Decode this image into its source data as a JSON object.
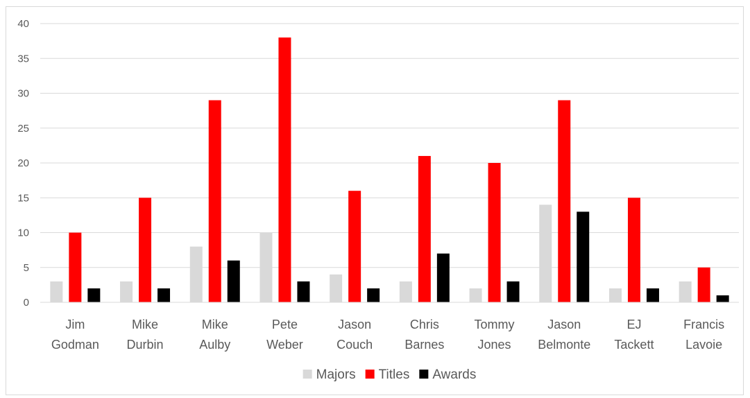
{
  "chart_data": {
    "type": "bar",
    "categories": [
      [
        "Jim",
        "Godman"
      ],
      [
        "Mike",
        "Durbin"
      ],
      [
        "Mike",
        "Aulby"
      ],
      [
        "Pete",
        "Weber"
      ],
      [
        "Jason",
        "Couch"
      ],
      [
        "Chris",
        "Barnes"
      ],
      [
        "Tommy",
        "Jones"
      ],
      [
        "Jason",
        "Belmonte"
      ],
      [
        "EJ",
        "Tackett"
      ],
      [
        "Francis",
        "Lavoie"
      ]
    ],
    "series": [
      {
        "name": "Majors",
        "color": "#d9d9d9",
        "values": [
          3,
          3,
          8,
          10,
          4,
          3,
          2,
          14,
          2,
          3
        ]
      },
      {
        "name": "Titles",
        "color": "#ff0000",
        "values": [
          10,
          15,
          29,
          38,
          16,
          21,
          20,
          29,
          15,
          5
        ]
      },
      {
        "name": "Awards",
        "color": "#000000",
        "values": [
          2,
          2,
          6,
          3,
          2,
          7,
          3,
          13,
          2,
          1
        ]
      }
    ],
    "yticks": [
      0,
      5,
      10,
      15,
      20,
      25,
      30,
      35,
      40
    ],
    "ylim": [
      0,
      40
    ],
    "grid": true,
    "legend_position": "bottom",
    "title": "",
    "xlabel": "",
    "ylabel": ""
  }
}
